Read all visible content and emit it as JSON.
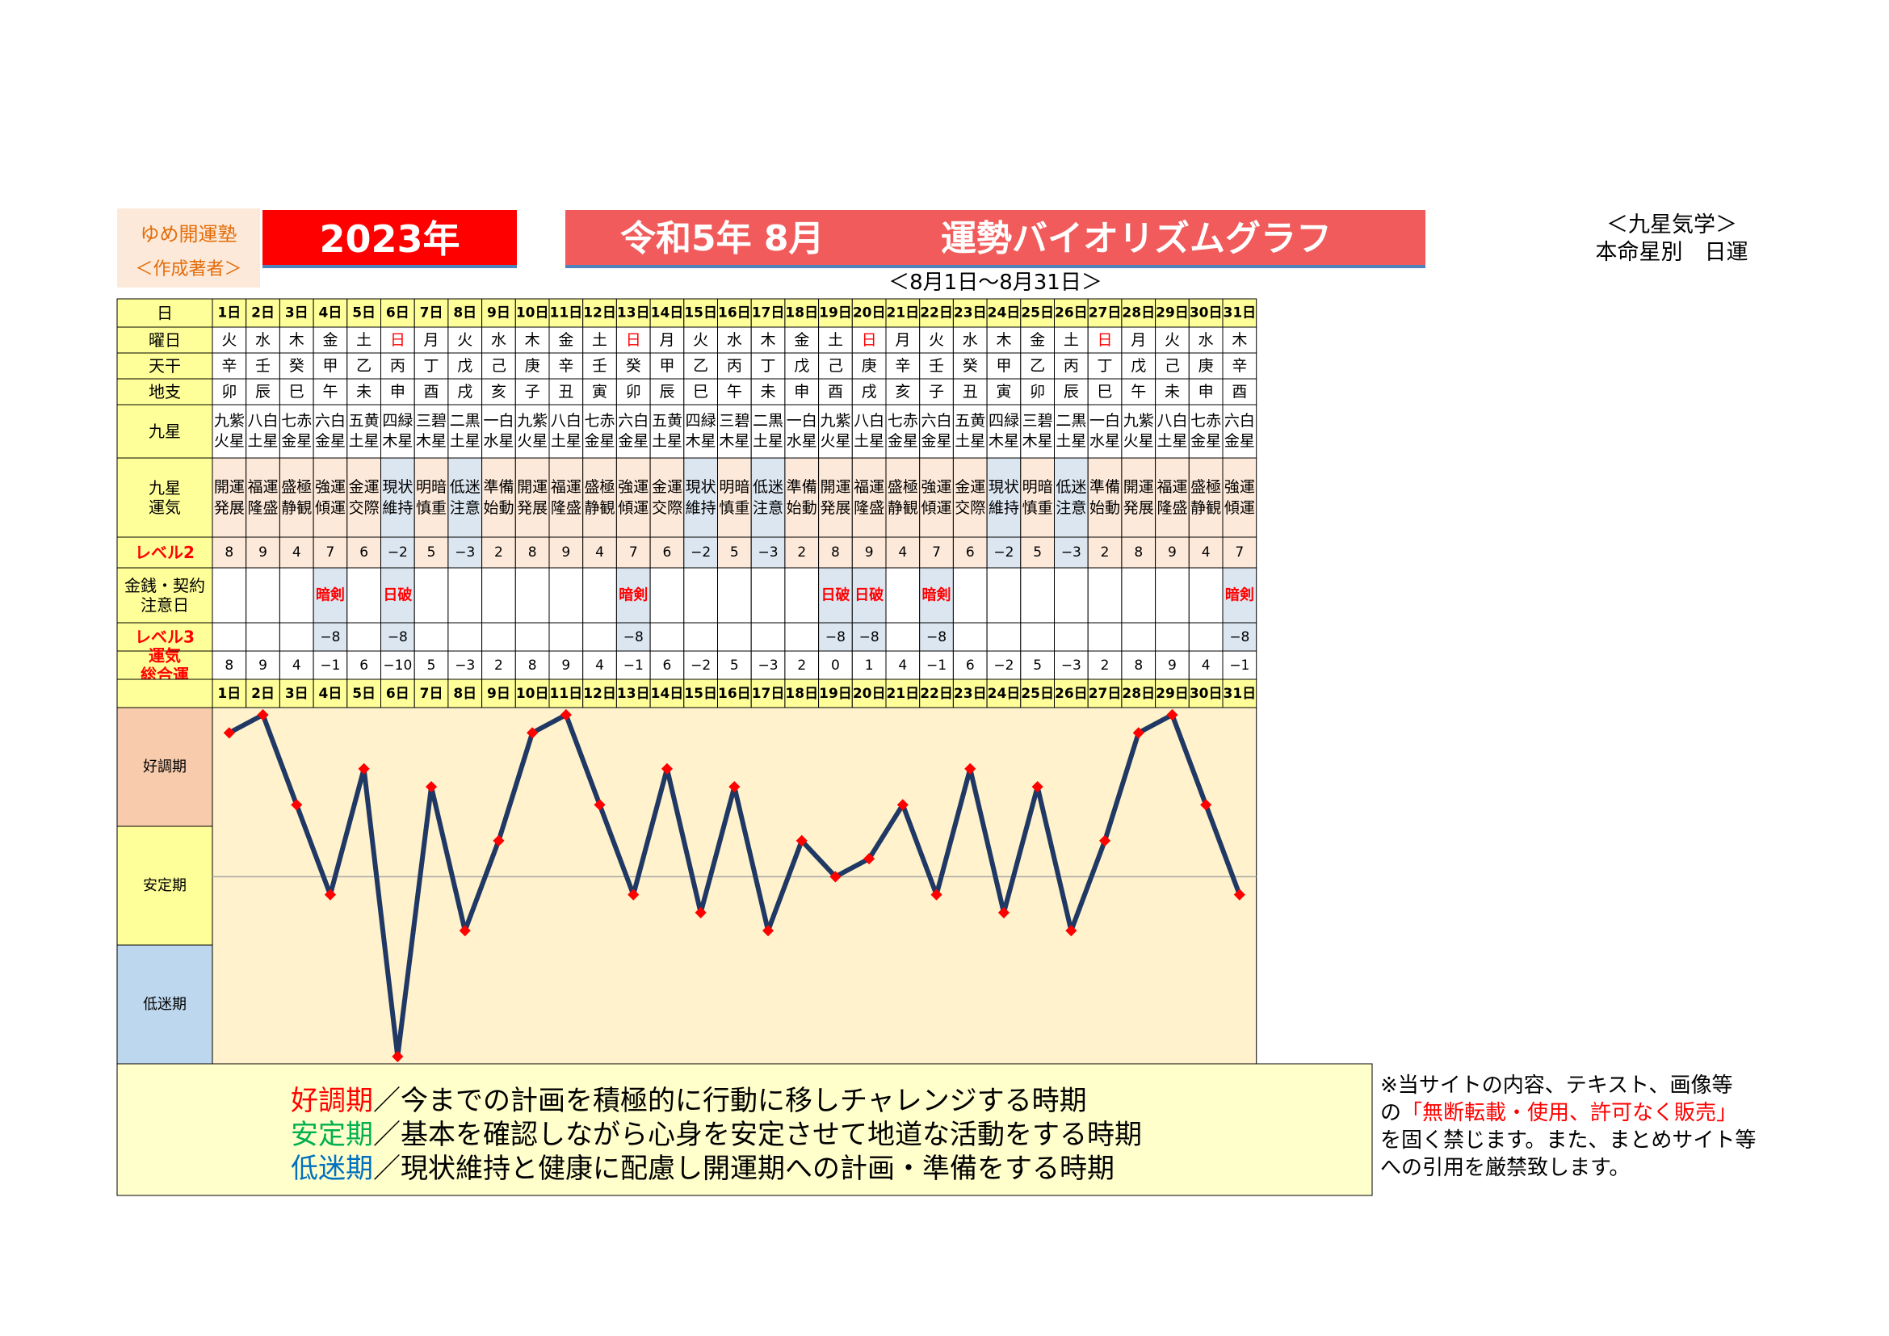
{
  "header": {
    "org_line1": "ゆめ開運塾",
    "org_line2": "＜作成著者＞",
    "year": "2023年",
    "title_left": "令和5年 8月",
    "title_right": "運勢バイオリズムグラフ",
    "range": "＜8月1日～8月31日＞",
    "school_line1": "＜九星気学＞",
    "school_line2": "本命星別　日運"
  },
  "row_labels": {
    "day": "日",
    "weekday": "曜日",
    "stem": "天干",
    "branch": "地支",
    "star": "九星",
    "fortune": [
      "九星",
      "運気"
    ],
    "level2": "レベル2",
    "money": [
      "金銭・契約",
      "注意日"
    ],
    "level3": "レベル3",
    "total": [
      "運気",
      "総合運"
    ]
  },
  "period_labels": [
    "好調期",
    "安定期",
    "低迷期"
  ],
  "colors": {
    "header_row": "#ffff99",
    "label_col": "#ffff99",
    "good_cell": "#fde9d9",
    "bad_cell": "#dce6f1",
    "plot_bg": "#fff2cc",
    "good_band": "#f8cbad",
    "mid_band": "#ffff99",
    "low_band": "#bdd7ee",
    "line": "#1f3864",
    "marker": "#ff0000",
    "sunday": "#ff0000",
    "level_label": "#ff0000"
  },
  "days": [
    {
      "d": "1日",
      "w": "火",
      "s": "辛",
      "b": "卯",
      "star": [
        "九紫",
        "火星"
      ],
      "f": [
        "開運",
        "発展"
      ],
      "l2": "8",
      "m": "",
      "l3": ""
    },
    {
      "d": "2日",
      "w": "水",
      "s": "壬",
      "b": "辰",
      "star": [
        "八白",
        "土星"
      ],
      "f": [
        "福運",
        "隆盛"
      ],
      "l2": "9",
      "m": "",
      "l3": ""
    },
    {
      "d": "3日",
      "w": "木",
      "s": "癸",
      "b": "巳",
      "star": [
        "七赤",
        "金星"
      ],
      "f": [
        "盛極",
        "静観"
      ],
      "l2": "4",
      "m": "",
      "l3": ""
    },
    {
      "d": "4日",
      "w": "金",
      "s": "甲",
      "b": "午",
      "star": [
        "六白",
        "金星"
      ],
      "f": [
        "強運",
        "傾運"
      ],
      "l2": "7",
      "m": "暗剣",
      "l3": "−8"
    },
    {
      "d": "5日",
      "w": "土",
      "s": "乙",
      "b": "未",
      "star": [
        "五黄",
        "土星"
      ],
      "f": [
        "金運",
        "交際"
      ],
      "l2": "6",
      "m": "",
      "l3": ""
    },
    {
      "d": "6日",
      "w": "日",
      "s": "丙",
      "b": "申",
      "star": [
        "四緑",
        "木星"
      ],
      "f": [
        "現状",
        "維持"
      ],
      "l2": "−2",
      "m": "日破",
      "l3": "−8"
    },
    {
      "d": "7日",
      "w": "月",
      "s": "丁",
      "b": "酉",
      "star": [
        "三碧",
        "木星"
      ],
      "f": [
        "明暗",
        "慎重"
      ],
      "l2": "5",
      "m": "",
      "l3": ""
    },
    {
      "d": "8日",
      "w": "火",
      "s": "戊",
      "b": "戌",
      "star": [
        "二黒",
        "土星"
      ],
      "f": [
        "低迷",
        "注意"
      ],
      "l2": "−3",
      "m": "",
      "l3": ""
    },
    {
      "d": "9日",
      "w": "水",
      "s": "己",
      "b": "亥",
      "star": [
        "一白",
        "水星"
      ],
      "f": [
        "準備",
        "始動"
      ],
      "l2": "2",
      "m": "",
      "l3": ""
    },
    {
      "d": "10日",
      "w": "木",
      "s": "庚",
      "b": "子",
      "star": [
        "九紫",
        "火星"
      ],
      "f": [
        "開運",
        "発展"
      ],
      "l2": "8",
      "m": "",
      "l3": ""
    },
    {
      "d": "11日",
      "w": "金",
      "s": "辛",
      "b": "丑",
      "star": [
        "八白",
        "土星"
      ],
      "f": [
        "福運",
        "隆盛"
      ],
      "l2": "9",
      "m": "",
      "l3": ""
    },
    {
      "d": "12日",
      "w": "土",
      "s": "壬",
      "b": "寅",
      "star": [
        "七赤",
        "金星"
      ],
      "f": [
        "盛極",
        "静観"
      ],
      "l2": "4",
      "m": "",
      "l3": ""
    },
    {
      "d": "13日",
      "w": "日",
      "s": "癸",
      "b": "卯",
      "star": [
        "六白",
        "金星"
      ],
      "f": [
        "強運",
        "傾運"
      ],
      "l2": "7",
      "m": "暗剣",
      "l3": "−8"
    },
    {
      "d": "14日",
      "w": "月",
      "s": "甲",
      "b": "辰",
      "star": [
        "五黄",
        "土星"
      ],
      "f": [
        "金運",
        "交際"
      ],
      "l2": "6",
      "m": "",
      "l3": ""
    },
    {
      "d": "15日",
      "w": "火",
      "s": "乙",
      "b": "巳",
      "star": [
        "四緑",
        "木星"
      ],
      "f": [
        "現状",
        "維持"
      ],
      "l2": "−2",
      "m": "",
      "l3": ""
    },
    {
      "d": "16日",
      "w": "水",
      "s": "丙",
      "b": "午",
      "star": [
        "三碧",
        "木星"
      ],
      "f": [
        "明暗",
        "慎重"
      ],
      "l2": "5",
      "m": "",
      "l3": ""
    },
    {
      "d": "17日",
      "w": "木",
      "s": "丁",
      "b": "未",
      "star": [
        "二黒",
        "土星"
      ],
      "f": [
        "低迷",
        "注意"
      ],
      "l2": "−3",
      "m": "",
      "l3": ""
    },
    {
      "d": "18日",
      "w": "金",
      "s": "戊",
      "b": "申",
      "star": [
        "一白",
        "水星"
      ],
      "f": [
        "準備",
        "始動"
      ],
      "l2": "2",
      "m": "",
      "l3": ""
    },
    {
      "d": "19日",
      "w": "土",
      "s": "己",
      "b": "酉",
      "star": [
        "九紫",
        "火星"
      ],
      "f": [
        "開運",
        "発展"
      ],
      "l2": "8",
      "m": "日破",
      "l3": "−8"
    },
    {
      "d": "20日",
      "w": "日",
      "s": "庚",
      "b": "戌",
      "star": [
        "八白",
        "土星"
      ],
      "f": [
        "福運",
        "隆盛"
      ],
      "l2": "9",
      "m": "日破",
      "l3": "−8"
    },
    {
      "d": "21日",
      "w": "月",
      "s": "辛",
      "b": "亥",
      "star": [
        "七赤",
        "金星"
      ],
      "f": [
        "盛極",
        "静観"
      ],
      "l2": "4",
      "m": "",
      "l3": ""
    },
    {
      "d": "22日",
      "w": "火",
      "s": "壬",
      "b": "子",
      "star": [
        "六白",
        "金星"
      ],
      "f": [
        "強運",
        "傾運"
      ],
      "l2": "7",
      "m": "暗剣",
      "l3": "−8"
    },
    {
      "d": "23日",
      "w": "水",
      "s": "癸",
      "b": "丑",
      "star": [
        "五黄",
        "土星"
      ],
      "f": [
        "金運",
        "交際"
      ],
      "l2": "6",
      "m": "",
      "l3": ""
    },
    {
      "d": "24日",
      "w": "木",
      "s": "甲",
      "b": "寅",
      "star": [
        "四緑",
        "木星"
      ],
      "f": [
        "現状",
        "維持"
      ],
      "l2": "−2",
      "m": "",
      "l3": ""
    },
    {
      "d": "25日",
      "w": "金",
      "s": "乙",
      "b": "卯",
      "star": [
        "三碧",
        "木星"
      ],
      "f": [
        "明暗",
        "慎重"
      ],
      "l2": "5",
      "m": "",
      "l3": ""
    },
    {
      "d": "26日",
      "w": "土",
      "s": "丙",
      "b": "辰",
      "star": [
        "二黒",
        "土星"
      ],
      "f": [
        "低迷",
        "注意"
      ],
      "l2": "−3",
      "m": "",
      "l3": ""
    },
    {
      "d": "27日",
      "w": "日",
      "s": "丁",
      "b": "巳",
      "star": [
        "一白",
        "水星"
      ],
      "f": [
        "準備",
        "始動"
      ],
      "l2": "2",
      "m": "",
      "l3": ""
    },
    {
      "d": "28日",
      "w": "月",
      "s": "戊",
      "b": "午",
      "star": [
        "九紫",
        "火星"
      ],
      "f": [
        "開運",
        "発展"
      ],
      "l2": "8",
      "m": "",
      "l3": ""
    },
    {
      "d": "29日",
      "w": "火",
      "s": "己",
      "b": "未",
      "star": [
        "八白",
        "土星"
      ],
      "f": [
        "福運",
        "隆盛"
      ],
      "l2": "9",
      "m": "",
      "l3": ""
    },
    {
      "d": "30日",
      "w": "水",
      "s": "庚",
      "b": "申",
      "star": [
        "七赤",
        "金星"
      ],
      "f": [
        "盛極",
        "静観"
      ],
      "l2": "4",
      "m": "",
      "l3": ""
    },
    {
      "d": "31日",
      "w": "木",
      "s": "辛",
      "b": "酉",
      "star": [
        "六白",
        "金星"
      ],
      "f": [
        "強運",
        "傾運"
      ],
      "l2": "7",
      "m": "暗剣",
      "l3": "−8"
    }
  ],
  "chart_data": {
    "type": "line",
    "categories": [
      "1日",
      "2日",
      "3日",
      "4日",
      "5日",
      "6日",
      "7日",
      "8日",
      "9日",
      "10日",
      "11日",
      "12日",
      "13日",
      "14日",
      "15日",
      "16日",
      "17日",
      "18日",
      "19日",
      "20日",
      "21日",
      "22日",
      "23日",
      "24日",
      "25日",
      "26日",
      "27日",
      "28日",
      "29日",
      "30日",
      "31日"
    ],
    "series": [
      {
        "values": [
          8,
          9,
          4,
          -1,
          6,
          -10,
          5,
          -3,
          2,
          8,
          9,
          4,
          -1,
          6,
          -2,
          5,
          -3,
          2,
          0,
          1,
          4,
          -1,
          6,
          -2,
          5,
          -3,
          2,
          8,
          9,
          4,
          -1
        ]
      }
    ],
    "total_labels": [
      "8",
      "9",
      "4",
      "−1",
      "6",
      "−10",
      "5",
      "−3",
      "2",
      "8",
      "9",
      "4",
      "−1",
      "6",
      "−2",
      "5",
      "−3",
      "2",
      "0",
      "1",
      "4",
      "−1",
      "6",
      "−2",
      "5",
      "−3",
      "2",
      "8",
      "9",
      "4",
      "−1"
    ],
    "ylim": [
      -10,
      9
    ],
    "baseline": 0
  },
  "legend": [
    {
      "head": "好調期",
      "head_color": "#ff0000",
      "text": "／今までの計画を積極的に行動に移しチャレンジする時期"
    },
    {
      "head": "安定期",
      "head_color": "#00b050",
      "text": "／基本を確認しながら心身を安定させて地道な活動をする時期"
    },
    {
      "head": "低迷期",
      "head_color": "#0070c0",
      "text": "／現状維持と健康に配慮し開運期への計画・準備をする時期"
    }
  ],
  "notice": {
    "line1": "※当サイトの内容、テキスト、画像等",
    "line2_pre": "の",
    "line2_red": "「無断転載・使用、許可なく販売」",
    "line3": "を固く禁じます。また、まとめサイト等",
    "line4": "への引用を厳禁致します。"
  }
}
